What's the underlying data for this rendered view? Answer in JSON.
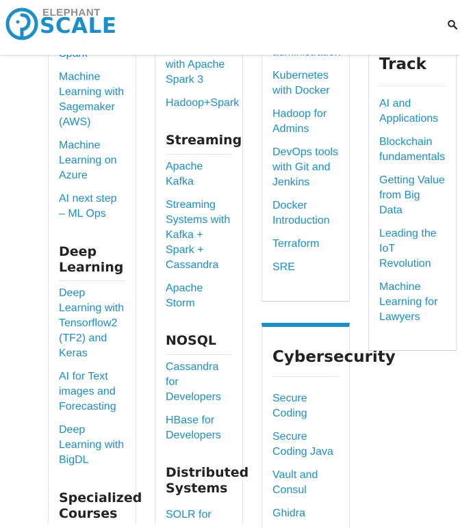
{
  "header": {
    "logo_top": "ELEPHANT",
    "logo_bottom": "SCALE",
    "search_icon": "search-icon"
  },
  "col1": {
    "items_top": [
      "Spark",
      "Machine Learning with Sagemaker (AWS)",
      "Machine Learning on Azure",
      "AI next step – ML Ops"
    ],
    "section_deep": "Deep Learning",
    "items_deep": [
      "Deep Learning with Tensorflow2 (TF2) and Keras",
      "AI for Text images and Forecasting",
      "Deep Learning with BigDL"
    ],
    "section_special": "Specialized Courses"
  },
  "col2": {
    "items_top": [
      "with Apache Spark 3",
      "Hadoop+Spark"
    ],
    "section_streaming": "Streaming",
    "items_streaming": [
      "Apache Kafka",
      "Streaming Systems with Kafka + Spark + Cassandra",
      "Apache Storm"
    ],
    "section_nosql": "NOSQL",
    "items_nosql": [
      "Cassandra for Developers",
      "HBase for Developers"
    ],
    "section_distributed": "Distributed Systems",
    "items_distributed": [
      "SOLR for"
    ]
  },
  "col3": {
    "items_top": [
      "administration",
      "Kubernetes with Docker",
      "Hadoop for Admins",
      "DevOps tools with Git and Jenkins",
      "Docker Introduction",
      "Terraform",
      "SRE"
    ],
    "section_cyber": "Cybersecurity",
    "items_cyber": [
      "Secure Coding",
      "Secure Coding Java",
      "Vault and Consul",
      "Ghidra"
    ]
  },
  "col4": {
    "section_track": "Track",
    "items_track": [
      "AI and Applications",
      "Blockchain fundamentals",
      "Getting Value from Big Data",
      "Leading the IoT Revolution",
      "Machine Learning for Lawyers"
    ]
  },
  "colors": {
    "link": "#1a8fc9",
    "accent_bar": "#1a8fc9",
    "heading": "#222222"
  }
}
